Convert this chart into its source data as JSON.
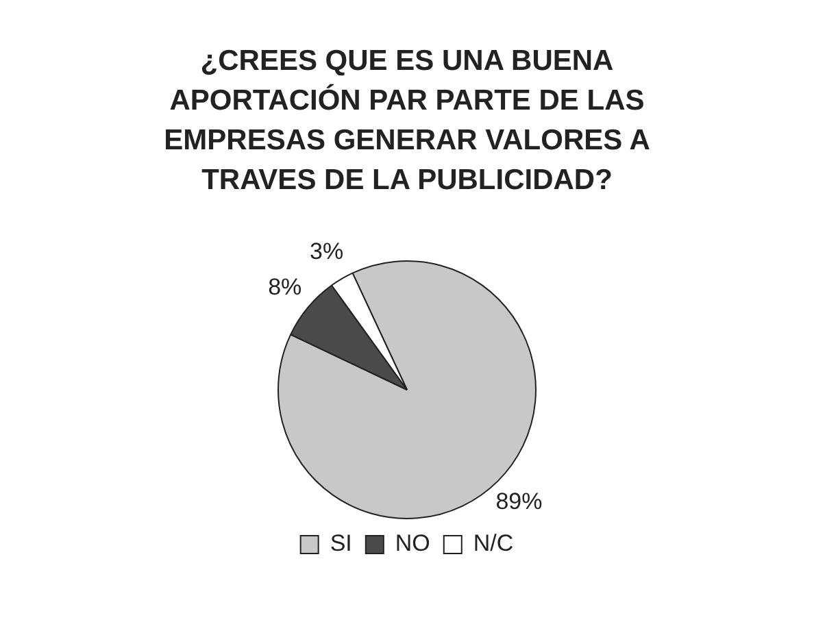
{
  "chart_data": {
    "type": "pie",
    "title": "¿CREES QUE ES UNA BUENA APORTACIÓN PAR PARTE DE LAS EMPRESAS GENERAR VALORES A TRAVES DE LA PUBLICIDAD?",
    "categories": [
      "SI",
      "NO",
      "N/C"
    ],
    "values": [
      89,
      8,
      3
    ],
    "colors": [
      "#c8c8c8",
      "#4a4a4a",
      "#ffffff"
    ],
    "value_labels": [
      "89%",
      "8%",
      "3%"
    ],
    "legend": "bottom"
  }
}
